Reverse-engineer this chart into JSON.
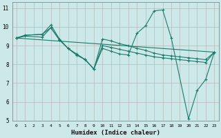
{
  "xlabel": "Humidex (Indice chaleur)",
  "bg_color": "#cce8e8",
  "grid_color": "#b0b0b0",
  "line_color": "#1a7a6a",
  "xlim": [
    -0.5,
    23.5
  ],
  "ylim": [
    5,
    11.3
  ],
  "xticks": [
    0,
    1,
    2,
    3,
    4,
    5,
    6,
    7,
    8,
    9,
    10,
    11,
    12,
    13,
    14,
    15,
    16,
    17,
    18,
    19,
    20,
    21,
    22,
    23
  ],
  "yticks": [
    5,
    6,
    7,
    8,
    9,
    10,
    11
  ],
  "line1_x": [
    0,
    1,
    3,
    4,
    5,
    6,
    7,
    8,
    9,
    10,
    11,
    12,
    13,
    14,
    15,
    16,
    17,
    18,
    20,
    21,
    22,
    23
  ],
  "line1_y": [
    9.4,
    9.55,
    9.6,
    10.1,
    9.35,
    8.85,
    8.55,
    8.25,
    7.75,
    8.85,
    8.7,
    8.55,
    8.5,
    9.65,
    10.05,
    10.85,
    10.9,
    9.4,
    5.1,
    6.6,
    7.2,
    8.65
  ],
  "line2_x": [
    0,
    1,
    3,
    4,
    5,
    6,
    7,
    8,
    9,
    10,
    11,
    12,
    13,
    14,
    15,
    16,
    17,
    18,
    19,
    20,
    21,
    22,
    23
  ],
  "line2_y": [
    9.4,
    9.55,
    9.6,
    9.95,
    9.3,
    8.85,
    8.5,
    8.25,
    7.75,
    9.35,
    9.25,
    9.1,
    9.0,
    8.85,
    8.75,
    8.6,
    8.5,
    8.45,
    8.4,
    8.35,
    8.3,
    8.25,
    8.65
  ],
  "line3_x": [
    0,
    1,
    3,
    4,
    5,
    6,
    7,
    8,
    9,
    10,
    11,
    12,
    13,
    14,
    15,
    16,
    17,
    18,
    19,
    20,
    21,
    22,
    23
  ],
  "line3_y": [
    9.4,
    9.5,
    9.45,
    9.95,
    9.3,
    8.85,
    8.5,
    8.25,
    7.75,
    9.0,
    8.9,
    8.8,
    8.7,
    8.6,
    8.5,
    8.4,
    8.35,
    8.3,
    8.25,
    8.2,
    8.15,
    8.1,
    8.65
  ],
  "line4_x": [
    0,
    23
  ],
  "line4_y": [
    9.4,
    8.65
  ]
}
